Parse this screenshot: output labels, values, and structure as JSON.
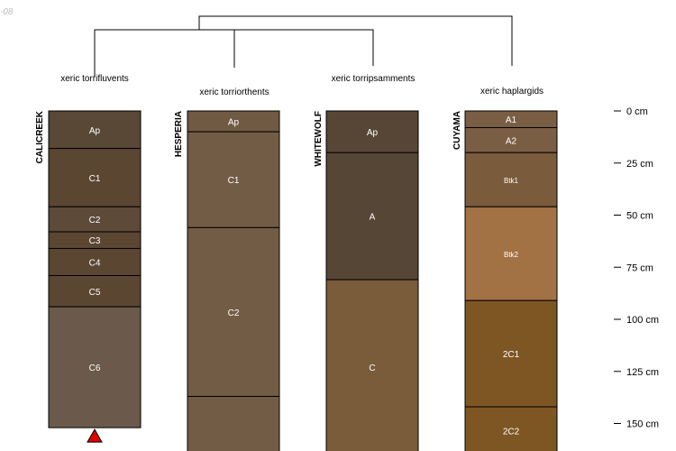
{
  "stamp_text": "-08",
  "tree": {
    "taxa_labels": [
      "xeric torrifluvents",
      "xeric torriorthents",
      "xeric torripsamments",
      "xeric haplargids"
    ]
  },
  "profiles": [
    {
      "name": "CALICREEK",
      "horizons": [
        {
          "name": "Ap",
          "top": 0,
          "bottom": 18,
          "color": "#594836"
        },
        {
          "name": "C1",
          "top": 18,
          "bottom": 46,
          "color": "#5b4631"
        },
        {
          "name": "C2",
          "top": 46,
          "bottom": 58,
          "color": "#5d4a38"
        },
        {
          "name": "C3",
          "top": 58,
          "bottom": 66,
          "color": "#5b4631"
        },
        {
          "name": "C4",
          "top": 66,
          "bottom": 79,
          "color": "#5b4631"
        },
        {
          "name": "C5",
          "top": 79,
          "bottom": 94,
          "color": "#5b4631"
        },
        {
          "name": "C6",
          "top": 94,
          "bottom": 152,
          "color": "#6b5a4b"
        }
      ],
      "truncated": true
    },
    {
      "name": "HESPERIA",
      "horizons": [
        {
          "name": "Ap",
          "top": 0,
          "bottom": 10,
          "color": "#705a43"
        },
        {
          "name": "C1",
          "top": 10,
          "bottom": 56,
          "color": "#735c45"
        },
        {
          "name": "C2",
          "top": 56,
          "bottom": 137,
          "color": "#735c45"
        },
        {
          "name": "",
          "top": 137,
          "bottom": 165,
          "color": "#735c45"
        }
      ],
      "truncated": false
    },
    {
      "name": "WHITEWOLF",
      "horizons": [
        {
          "name": "Ap",
          "top": 0,
          "bottom": 20,
          "color": "#574636"
        },
        {
          "name": "A",
          "top": 20,
          "bottom": 81,
          "color": "#564636"
        },
        {
          "name": "C",
          "top": 81,
          "bottom": 165,
          "color": "#7a5c3a"
        }
      ],
      "truncated": false
    },
    {
      "name": "CUYAMA",
      "horizons": [
        {
          "name": "A1",
          "top": 0,
          "bottom": 8,
          "color": "#7a5e44"
        },
        {
          "name": "A2",
          "top": 8,
          "bottom": 20,
          "color": "#7a5e44"
        },
        {
          "name": "Btk1",
          "top": 20,
          "bottom": 46,
          "color": "#7a5b3b"
        },
        {
          "name": "Btk2",
          "top": 46,
          "bottom": 91,
          "color": "#a27244"
        },
        {
          "name": "2C1",
          "top": 91,
          "bottom": 142,
          "color": "#7e5623"
        },
        {
          "name": "2C2",
          "top": 142,
          "bottom": 165,
          "color": "#7e5623"
        }
      ],
      "truncated": false
    }
  ],
  "depth_axis": {
    "unit": "cm",
    "ticks": [
      0,
      25,
      50,
      75,
      100,
      125,
      150
    ],
    "labels": [
      "0 cm",
      "25 cm",
      "50 cm",
      "75 cm",
      "100 cm",
      "125 cm",
      "150 cm"
    ]
  },
  "colors": {
    "truncation_marker": "#e00000",
    "lines": "#000000"
  }
}
